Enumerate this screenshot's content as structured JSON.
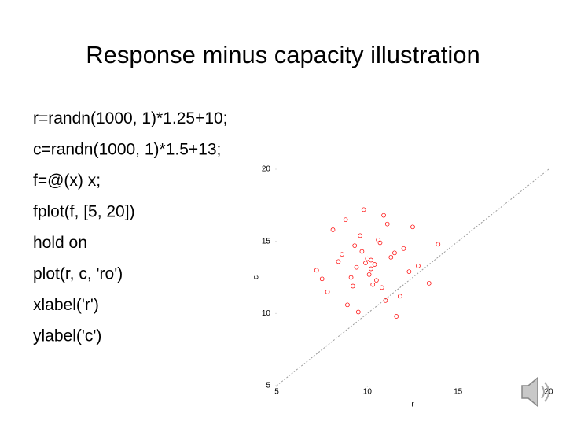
{
  "slide": {
    "title": "Response minus capacity illustration",
    "code_lines": [
      "r=randn(1000, 1)*1.25+10;",
      "c=randn(1000, 1)*1.5+13;",
      "f=@(x) x;",
      "fplot(f, [5, 20])",
      "hold on",
      "plot(r, c, 'ro')",
      " xlabel('r')",
      "ylabel('c')"
    ]
  },
  "chart_data": {
    "type": "scatter",
    "xlabel": "r",
    "ylabel": "c",
    "xlim": [
      5,
      20
    ],
    "ylim": [
      5,
      20
    ],
    "xticks": [
      5,
      10,
      15,
      20
    ],
    "yticks": [
      5,
      10,
      15,
      20
    ],
    "series": [
      {
        "mode": "line",
        "color": "#9a9a9a",
        "x": [
          5,
          20
        ],
        "values": [
          5,
          20
        ]
      },
      {
        "mode": "markers",
        "color": "#ff0000",
        "x": [
          10.2,
          9.1,
          11.5,
          8.4,
          10.8,
          12.3,
          9.6,
          10.0,
          7.8,
          11.1,
          10.5,
          9.3,
          12.8,
          8.9,
          10.7,
          11.8,
          9.9,
          10.3,
          8.1,
          11.3,
          9.5,
          10.9,
          7.2,
          12.0,
          10.1,
          9.8,
          13.4,
          8.6,
          10.4,
          11.6,
          9.2,
          10.6,
          12.5,
          7.5,
          9.7,
          11.0,
          10.2,
          8.8,
          13.9,
          9.4
        ],
        "values": [
          13.1,
          12.5,
          14.2,
          13.6,
          11.8,
          12.9,
          15.4,
          13.8,
          11.5,
          16.2,
          12.3,
          14.7,
          13.3,
          10.6,
          14.9,
          11.2,
          13.5,
          12.0,
          15.8,
          13.9,
          10.1,
          16.8,
          13.0,
          14.5,
          12.7,
          17.2,
          12.1,
          14.1,
          13.4,
          9.8,
          11.9,
          15.1,
          16.0,
          12.4,
          14.3,
          10.9,
          13.7,
          16.5,
          14.8,
          13.2
        ]
      }
    ]
  }
}
